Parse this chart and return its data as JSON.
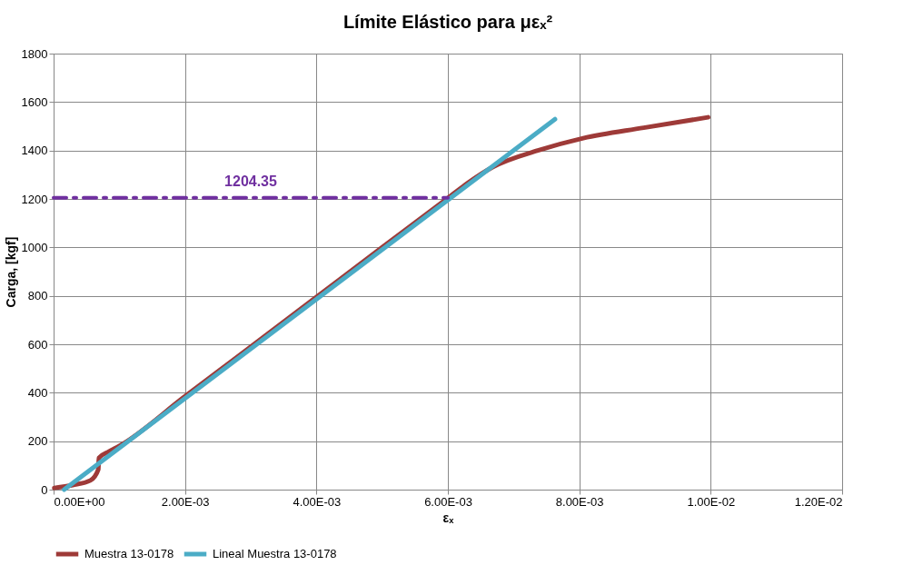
{
  "chart_data": {
    "type": "line",
    "title": "Límite Elástico para μεₓ²",
    "xlabel": "εₓ",
    "ylabel": "Carga, [kgf]",
    "xlim": [
      0,
      0.012
    ],
    "xticks": [
      {
        "value": 0,
        "label": "0.00E+00"
      },
      {
        "value": 0.002,
        "label": "2.00E-03"
      },
      {
        "value": 0.004,
        "label": "4.00E-03"
      },
      {
        "value": 0.006,
        "label": "6.00E-03"
      },
      {
        "value": 0.008,
        "label": "8.00E-03"
      },
      {
        "value": 0.01,
        "label": "1.00E-02"
      },
      {
        "value": 0.012,
        "label": "1.20E-02"
      }
    ],
    "ylim": [
      0,
      1800
    ],
    "yticks": [
      0,
      200,
      400,
      600,
      800,
      1000,
      1200,
      1400,
      1600,
      1800
    ],
    "grid": true,
    "legend": "bottom",
    "marker": "none",
    "series": [
      {
        "name": "Muestra 13-0178",
        "color": "#9e3a38",
        "line_style": "solid",
        "x": [
          1e-05,
          0.00029,
          0.00056,
          0.00068,
          0.00069,
          0.00084,
          0.001,
          0.002,
          0.003,
          0.004,
          0.005,
          0.006,
          0.0063,
          0.00668,
          0.00737,
          0.00806,
          0.00898,
          0.00996
        ],
        "values": [
          7,
          19,
          38,
          83,
          131,
          157,
          180,
          385,
          590,
          795,
          1000,
          1204,
          1265,
          1331,
          1400,
          1451,
          1494,
          1537
        ]
      },
      {
        "name": "Lineal Muestra 13-0178",
        "color": "#4bacc6",
        "line_style": "solid",
        "x": [
          0.00016,
          0.00763
        ],
        "values": [
          0,
          1529
        ]
      },
      {
        "color": "#7030a0",
        "line_style": "dashed",
        "x": [
          0,
          0.006
        ],
        "values": [
          1204.35,
          1204.35
        ]
      }
    ],
    "annotations": [
      {
        "text": "1204.35",
        "x": 0.003,
        "y": 1204.35
      }
    ]
  }
}
